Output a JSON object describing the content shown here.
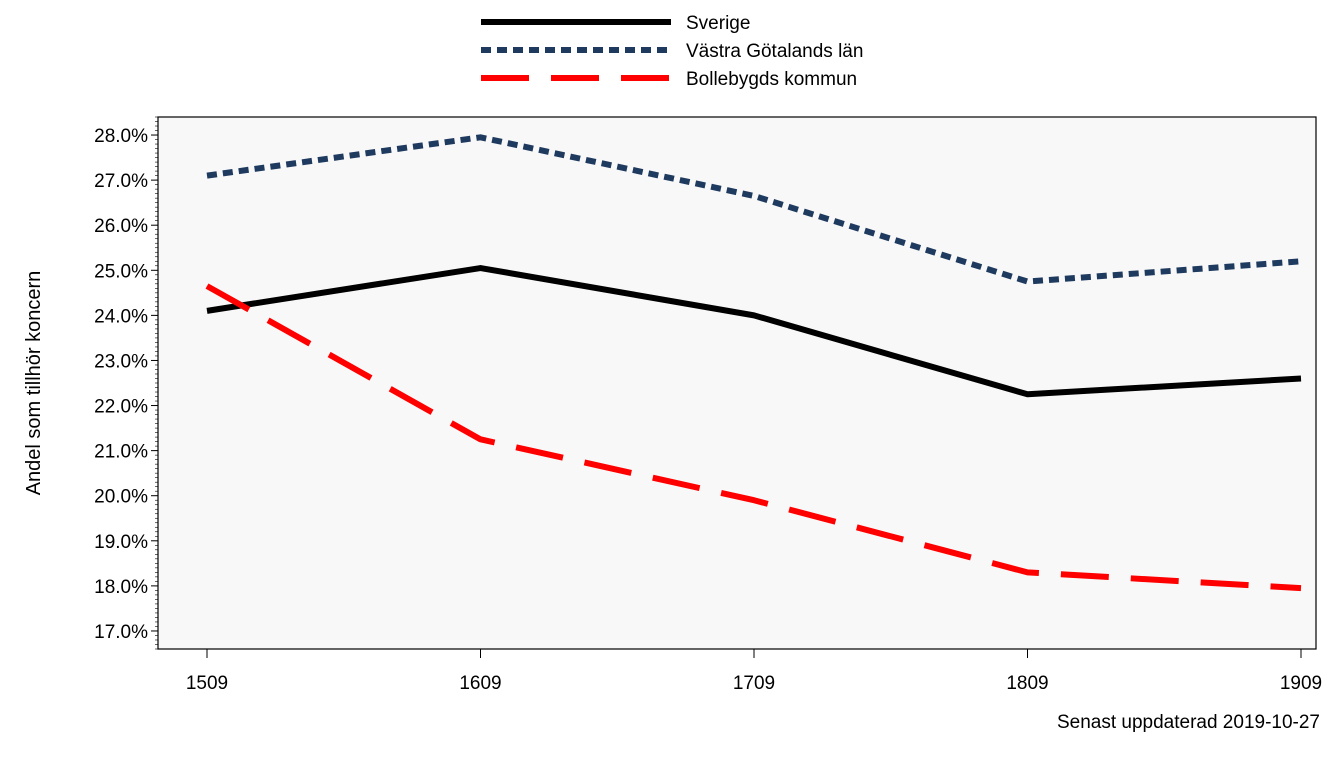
{
  "chart_data": {
    "type": "line",
    "x": [
      "1509",
      "1609",
      "1709",
      "1809",
      "1909"
    ],
    "series": [
      {
        "name": "Sverige",
        "values": [
          24.1,
          25.05,
          24.0,
          22.25,
          22.6
        ],
        "color": "#000000",
        "style": "solid"
      },
      {
        "name": "Västra Götalands län",
        "values": [
          27.1,
          27.95,
          26.65,
          24.75,
          25.2
        ],
        "color": "#1f3a5f",
        "style": "dotted"
      },
      {
        "name": "Bollebygds kommun",
        "values": [
          24.65,
          21.25,
          19.9,
          18.3,
          17.95
        ],
        "color": "#ff0000",
        "style": "dashed"
      }
    ],
    "ylabel": "Andel som tillhör koncern",
    "xlabel": "",
    "ylim": [
      16.6,
      28.4
    ],
    "yticks": [
      17.0,
      18.0,
      19.0,
      20.0,
      21.0,
      22.0,
      23.0,
      24.0,
      25.0,
      26.0,
      27.0,
      28.0
    ],
    "ytick_labels": [
      "17.0%",
      "18.0%",
      "19.0%",
      "20.0%",
      "21.0%",
      "22.0%",
      "23.0%",
      "24.0%",
      "25.0%",
      "26.0%",
      "27.0%",
      "28.0%"
    ],
    "legend_position": "top-center",
    "grid": false,
    "plot_background": "#f8f8f8"
  },
  "footer": "Senast uppdaterad 2019-10-27"
}
